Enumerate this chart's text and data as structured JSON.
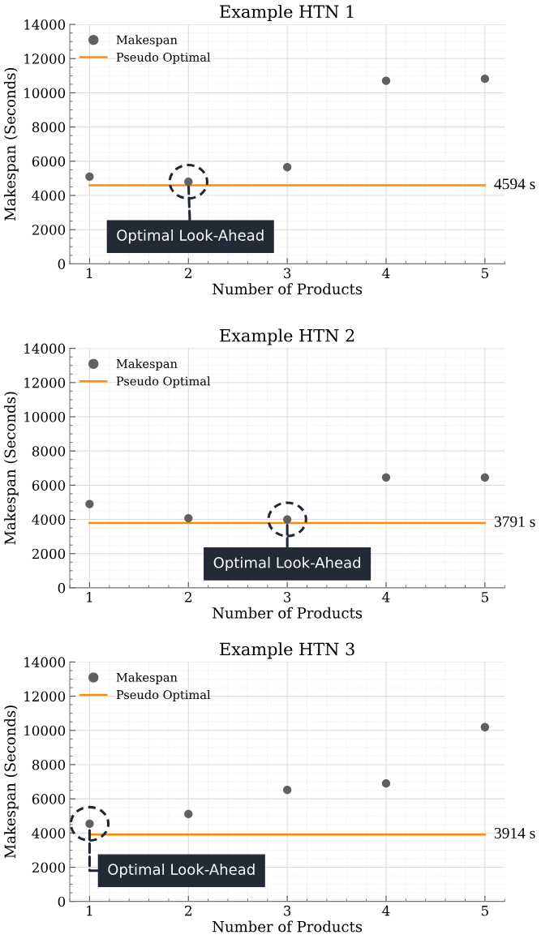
{
  "chart_data": [
    {
      "type": "line",
      "title": "Example HTN 1",
      "xlabel": "Number of Products",
      "ylabel": "Makespan (Seconds)",
      "xlim": [
        0.8,
        5.2
      ],
      "xticks": [
        1,
        2,
        3,
        4,
        5
      ],
      "ylim": [
        0,
        14000
      ],
      "yticks": [
        0,
        2000,
        4000,
        6000,
        8000,
        10000,
        12000,
        14000
      ],
      "grid": true,
      "legend": "top left",
      "x": [
        1,
        2,
        3,
        4,
        5
      ],
      "series": [
        {
          "name": "Makespan",
          "type": "scatter",
          "marker": "circle",
          "color": "#606060",
          "values": [
            5100,
            4800,
            5650,
            10700,
            10820
          ]
        },
        {
          "name": "Pseudo Optimal",
          "color": "#ff8c00",
          "values": [
            4594,
            4594,
            4594,
            4594,
            4594
          ],
          "value_labels": [
            null,
            null,
            null,
            null,
            "4594 s"
          ]
        }
      ],
      "annotations": [
        {
          "text": "Optimal Look-Ahead",
          "x": 2,
          "y": 4800
        }
      ]
    },
    {
      "type": "line",
      "title": "Example HTN 2",
      "xlabel": "Number of Products",
      "ylabel": "Makespan (Seconds)",
      "xlim": [
        0.8,
        5.2
      ],
      "xticks": [
        1,
        2,
        3,
        4,
        5
      ],
      "ylim": [
        0,
        14000
      ],
      "yticks": [
        0,
        2000,
        4000,
        6000,
        8000,
        10000,
        12000,
        14000
      ],
      "grid": true,
      "legend": "top left",
      "x": [
        1,
        2,
        3,
        4,
        5
      ],
      "series": [
        {
          "name": "Makespan",
          "type": "scatter",
          "marker": "circle",
          "color": "#606060",
          "values": [
            4900,
            4070,
            4000,
            6450,
            6450
          ]
        },
        {
          "name": "Pseudo Optimal",
          "color": "#ff8c00",
          "values": [
            3791,
            3791,
            3791,
            3791,
            3791
          ],
          "value_labels": [
            null,
            null,
            null,
            null,
            "3791 s"
          ]
        }
      ],
      "annotations": [
        {
          "text": "Optimal Look-Ahead",
          "x": 3,
          "y": 4000
        }
      ]
    },
    {
      "type": "line",
      "title": "Example HTN 3",
      "xlabel": "Number of Products",
      "ylabel": "Makespan (Seconds)",
      "xlim": [
        0.8,
        5.2
      ],
      "xticks": [
        1,
        2,
        3,
        4,
        5
      ],
      "ylim": [
        0,
        14000
      ],
      "yticks": [
        0,
        2000,
        4000,
        6000,
        8000,
        10000,
        12000,
        14000
      ],
      "grid": true,
      "legend": "top left",
      "x": [
        1,
        2,
        3,
        4,
        5
      ],
      "series": [
        {
          "name": "Makespan",
          "type": "scatter",
          "marker": "circle",
          "color": "#606060",
          "values": [
            4540,
            5110,
            6520,
            6900,
            10190
          ]
        },
        {
          "name": "Pseudo Optimal",
          "color": "#ff8c00",
          "values": [
            3914,
            3914,
            3914,
            3914,
            3914
          ],
          "value_labels": [
            null,
            null,
            null,
            null,
            "3914 s"
          ]
        }
      ],
      "annotations": [
        {
          "text": "Optimal Look-Ahead",
          "x": 1,
          "y": 4540
        }
      ]
    }
  ]
}
